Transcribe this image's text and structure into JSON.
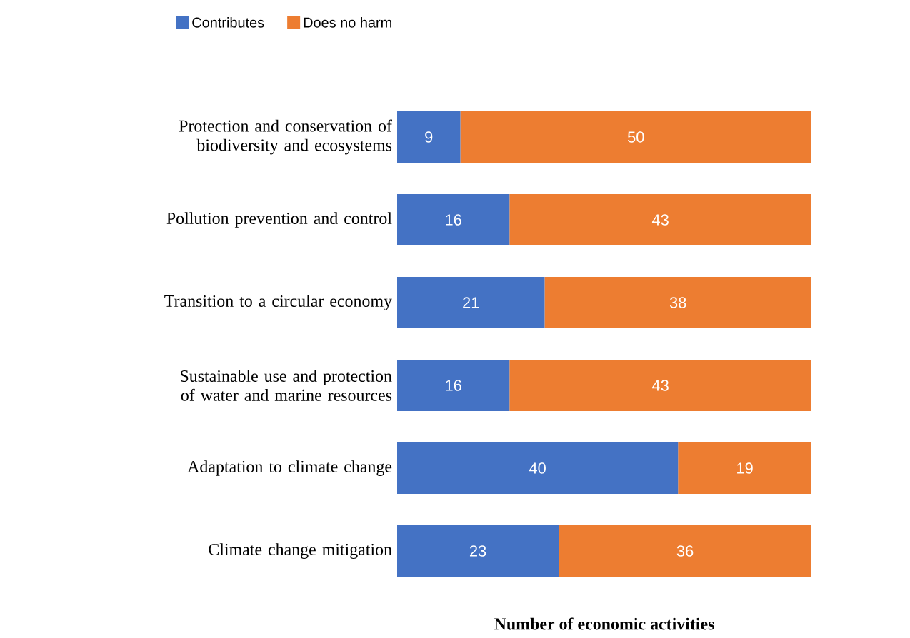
{
  "chart_data": {
    "type": "bar",
    "orientation": "horizontal",
    "stacked": true,
    "data_labels": true,
    "legend": "top left",
    "tick_labels": "y",
    "xlabel": "Number of economic activities",
    "categories": [
      "Protection and conservation of biodiversity and ecosystems",
      "Pollution prevention and control",
      "Transition to a circular economy",
      "Sustainable use and protection of water and marine resources",
      "Adaptation to climate change",
      "Climate change mitigation"
    ],
    "series": [
      {
        "name": "Contributes",
        "color": "#4472c4",
        "values": [
          9,
          16,
          21,
          16,
          40,
          23
        ]
      },
      {
        "name": "Does no harm",
        "color": "#ed7d31",
        "values": [
          50,
          43,
          38,
          43,
          19,
          36
        ]
      }
    ]
  }
}
